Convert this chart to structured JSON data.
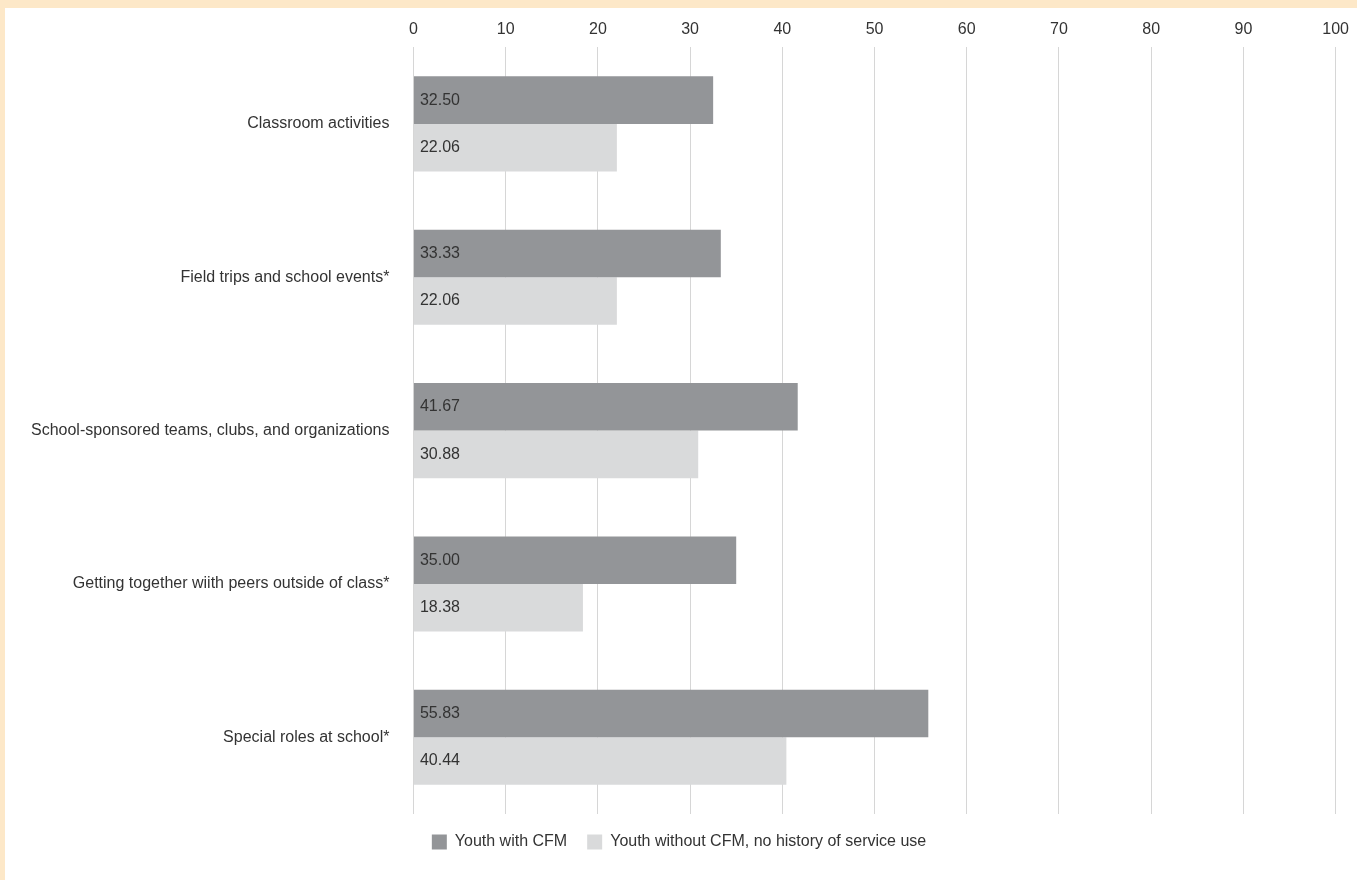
{
  "chart_data": {
    "type": "bar",
    "orientation": "horizontal",
    "categories": [
      "Classroom activities",
      "Field trips and school events*",
      "School-sponsored teams, clubs, and organizations",
      "Getting together wiith peers outside of class*",
      "Special roles at school*"
    ],
    "series": [
      {
        "name": "Youth with CFM",
        "color": "#939598",
        "values": [
          32.5,
          33.33,
          41.67,
          35,
          55.83
        ],
        "value_labels": [
          "32.50",
          "33.33",
          "41.67",
          "35.00",
          "55.83"
        ]
      },
      {
        "name": "Youth without CFM, no history of service use",
        "color": "#d9dadb",
        "values": [
          22.06,
          22.06,
          30.88,
          18.38,
          40.44
        ],
        "value_labels": [
          "22.06",
          "22.06",
          "30.88",
          "18.38",
          "40.44"
        ]
      }
    ],
    "xlim": [
      0,
      100
    ],
    "xticks": [
      0,
      10,
      20,
      30,
      40,
      50,
      60,
      70,
      80,
      90,
      100
    ],
    "grid": "x",
    "legend": "bottom"
  }
}
